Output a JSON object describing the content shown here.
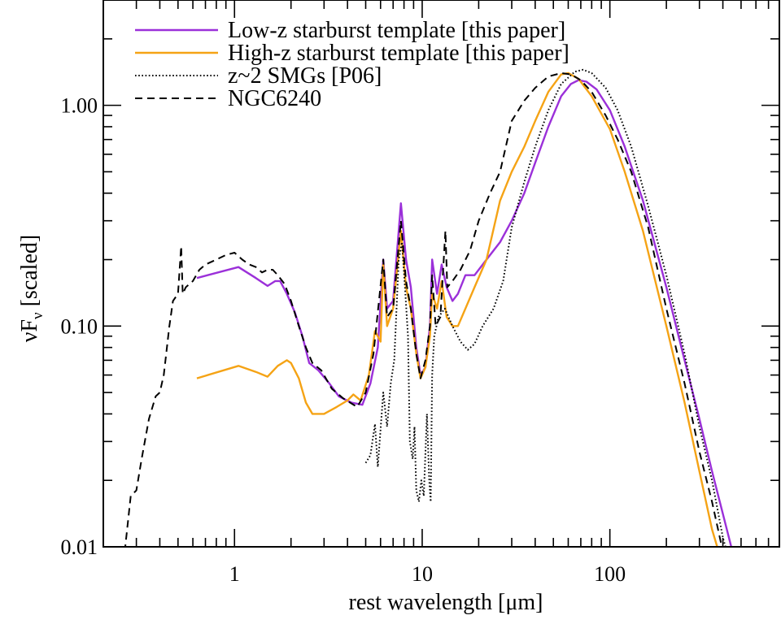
{
  "chart_data": {
    "type": "line",
    "title": "",
    "xlabel": "rest wavelength [μm]",
    "ylabel_main": "νF",
    "ylabel_sub": "ν",
    "ylabel_rest": " [scaled]",
    "x_scale": "log",
    "y_scale": "log",
    "xlim": [
      0.2,
      800
    ],
    "ylim": [
      0.01,
      3
    ],
    "grid": false,
    "legend_position": "top-left",
    "x_ticks": [
      {
        "value": 1,
        "label": "1"
      },
      {
        "value": 10,
        "label": "10"
      },
      {
        "value": 100,
        "label": "100"
      }
    ],
    "y_ticks": [
      {
        "value": 0.01,
        "label": "0.01"
      },
      {
        "value": 0.1,
        "label": "0.10"
      },
      {
        "value": 1,
        "label": "1.00"
      }
    ],
    "series": [
      {
        "name": "Low-z starburst template [this paper]",
        "color": "#9b30d9",
        "dash": "solid",
        "points": [
          [
            0.63,
            0.165
          ],
          [
            1.05,
            0.185
          ],
          [
            1.3,
            0.165
          ],
          [
            1.5,
            0.152
          ],
          [
            1.65,
            0.16
          ],
          [
            1.75,
            0.16
          ],
          [
            1.9,
            0.14
          ],
          [
            2.1,
            0.115
          ],
          [
            2.3,
            0.09
          ],
          [
            2.5,
            0.068
          ],
          [
            2.8,
            0.063
          ],
          [
            3.2,
            0.055
          ],
          [
            3.6,
            0.048
          ],
          [
            4.2,
            0.045
          ],
          [
            4.8,
            0.044
          ],
          [
            5.3,
            0.055
          ],
          [
            5.8,
            0.08
          ],
          [
            6.2,
            0.2
          ],
          [
            6.5,
            0.12
          ],
          [
            7.0,
            0.13
          ],
          [
            7.7,
            0.36
          ],
          [
            8.2,
            0.2
          ],
          [
            8.7,
            0.15
          ],
          [
            9.3,
            0.08
          ],
          [
            9.8,
            0.06
          ],
          [
            10.4,
            0.065
          ],
          [
            11.0,
            0.1
          ],
          [
            11.3,
            0.2
          ],
          [
            12.0,
            0.14
          ],
          [
            12.7,
            0.19
          ],
          [
            13.5,
            0.15
          ],
          [
            14.5,
            0.13
          ],
          [
            15.5,
            0.14
          ],
          [
            17,
            0.17
          ],
          [
            19,
            0.17
          ],
          [
            22,
            0.2
          ],
          [
            26,
            0.24
          ],
          [
            30,
            0.3
          ],
          [
            35,
            0.4
          ],
          [
            40,
            0.55
          ],
          [
            47,
            0.8
          ],
          [
            55,
            1.1
          ],
          [
            62,
            1.25
          ],
          [
            68,
            1.3
          ],
          [
            75,
            1.28
          ],
          [
            85,
            1.18
          ],
          [
            100,
            0.95
          ],
          [
            120,
            0.65
          ],
          [
            150,
            0.37
          ],
          [
            200,
            0.15
          ],
          [
            250,
            0.07
          ],
          [
            300,
            0.038
          ],
          [
            350,
            0.022
          ],
          [
            420,
            0.012
          ],
          [
            450,
            0.0095
          ]
        ]
      },
      {
        "name": "High-z starburst template [this paper]",
        "color": "#f5a315",
        "dash": "solid",
        "points": [
          [
            0.63,
            0.058
          ],
          [
            1.05,
            0.066
          ],
          [
            1.3,
            0.062
          ],
          [
            1.5,
            0.059
          ],
          [
            1.7,
            0.066
          ],
          [
            1.9,
            0.07
          ],
          [
            2.0,
            0.068
          ],
          [
            2.2,
            0.058
          ],
          [
            2.4,
            0.045
          ],
          [
            2.6,
            0.04
          ],
          [
            3.0,
            0.04
          ],
          [
            3.5,
            0.043
          ],
          [
            4.0,
            0.046
          ],
          [
            4.3,
            0.049
          ],
          [
            4.7,
            0.046
          ],
          [
            5.2,
            0.06
          ],
          [
            5.6,
            0.095
          ],
          [
            6.0,
            0.085
          ],
          [
            6.2,
            0.19
          ],
          [
            6.5,
            0.1
          ],
          [
            7.0,
            0.12
          ],
          [
            7.7,
            0.27
          ],
          [
            8.2,
            0.15
          ],
          [
            8.7,
            0.12
          ],
          [
            9.3,
            0.075
          ],
          [
            9.8,
            0.058
          ],
          [
            10.4,
            0.065
          ],
          [
            11.0,
            0.09
          ],
          [
            11.3,
            0.14
          ],
          [
            12.0,
            0.12
          ],
          [
            12.7,
            0.16
          ],
          [
            13.5,
            0.11
          ],
          [
            14.5,
            0.1
          ],
          [
            15.5,
            0.1
          ],
          [
            17,
            0.12
          ],
          [
            19,
            0.15
          ],
          [
            22,
            0.2
          ],
          [
            26,
            0.37
          ],
          [
            30,
            0.5
          ],
          [
            35,
            0.65
          ],
          [
            40,
            0.85
          ],
          [
            47,
            1.15
          ],
          [
            55,
            1.38
          ],
          [
            60,
            1.4
          ],
          [
            68,
            1.32
          ],
          [
            80,
            1.1
          ],
          [
            100,
            0.78
          ],
          [
            120,
            0.5
          ],
          [
            150,
            0.27
          ],
          [
            200,
            0.1
          ],
          [
            250,
            0.045
          ],
          [
            300,
            0.022
          ],
          [
            350,
            0.012
          ],
          [
            380,
            0.0095
          ]
        ]
      },
      {
        "name": "z~2 SMGs [P06]",
        "color": "#000000",
        "dash": "dotted",
        "points": [
          [
            5.0,
            0.024
          ],
          [
            5.3,
            0.026
          ],
          [
            5.6,
            0.036
          ],
          [
            5.8,
            0.023
          ],
          [
            6.2,
            0.05
          ],
          [
            6.5,
            0.035
          ],
          [
            6.8,
            0.055
          ],
          [
            7.1,
            0.07
          ],
          [
            7.5,
            0.2
          ],
          [
            7.8,
            0.24
          ],
          [
            8.1,
            0.15
          ],
          [
            8.4,
            0.09
          ],
          [
            8.6,
            0.03
          ],
          [
            8.9,
            0.025
          ],
          [
            9.1,
            0.035
          ],
          [
            9.3,
            0.018
          ],
          [
            9.6,
            0.016
          ],
          [
            9.9,
            0.02
          ],
          [
            10.2,
            0.017
          ],
          [
            10.6,
            0.04
          ],
          [
            10.9,
            0.02
          ],
          [
            11.1,
            0.016
          ],
          [
            11.3,
            0.06
          ],
          [
            11.6,
            0.09
          ],
          [
            12.2,
            0.11
          ],
          [
            13.2,
            0.12
          ],
          [
            14.5,
            0.1
          ],
          [
            16,
            0.085
          ],
          [
            17.5,
            0.078
          ],
          [
            19,
            0.083
          ],
          [
            21,
            0.1
          ],
          [
            24,
            0.12
          ],
          [
            27,
            0.16
          ],
          [
            30,
            0.28
          ],
          [
            35,
            0.45
          ],
          [
            40,
            0.65
          ],
          [
            47,
            0.95
          ],
          [
            55,
            1.25
          ],
          [
            65,
            1.42
          ],
          [
            72,
            1.45
          ],
          [
            80,
            1.4
          ],
          [
            95,
            1.2
          ],
          [
            110,
            0.95
          ],
          [
            130,
            0.65
          ],
          [
            160,
            0.35
          ],
          [
            200,
            0.17
          ],
          [
            250,
            0.075
          ],
          [
            300,
            0.035
          ],
          [
            350,
            0.02
          ],
          [
            400,
            0.011
          ],
          [
            420,
            0.0095
          ]
        ]
      },
      {
        "name": "NGC6240",
        "color": "#000000",
        "dash": "dashed",
        "points": [
          [
            0.26,
            0.0095
          ],
          [
            0.28,
            0.017
          ],
          [
            0.3,
            0.018
          ],
          [
            0.32,
            0.025
          ],
          [
            0.35,
            0.038
          ],
          [
            0.38,
            0.048
          ],
          [
            0.4,
            0.05
          ],
          [
            0.42,
            0.06
          ],
          [
            0.45,
            0.1
          ],
          [
            0.47,
            0.13
          ],
          [
            0.5,
            0.14
          ],
          [
            0.52,
            0.23
          ],
          [
            0.53,
            0.14
          ],
          [
            0.55,
            0.15
          ],
          [
            0.6,
            0.16
          ],
          [
            0.65,
            0.18
          ],
          [
            0.7,
            0.19
          ],
          [
            0.8,
            0.2
          ],
          [
            0.9,
            0.21
          ],
          [
            1.0,
            0.215
          ],
          [
            1.1,
            0.2
          ],
          [
            1.2,
            0.19
          ],
          [
            1.3,
            0.185
          ],
          [
            1.4,
            0.175
          ],
          [
            1.5,
            0.18
          ],
          [
            1.6,
            0.18
          ],
          [
            1.7,
            0.17
          ],
          [
            1.85,
            0.155
          ],
          [
            2.0,
            0.13
          ],
          [
            2.2,
            0.1
          ],
          [
            2.4,
            0.08
          ],
          [
            2.6,
            0.068
          ],
          [
            2.9,
            0.063
          ],
          [
            3.3,
            0.052
          ],
          [
            3.8,
            0.047
          ],
          [
            4.5,
            0.043
          ],
          [
            5.0,
            0.05
          ],
          [
            5.5,
            0.075
          ],
          [
            6.2,
            0.2
          ],
          [
            6.5,
            0.11
          ],
          [
            7.0,
            0.12
          ],
          [
            7.7,
            0.3
          ],
          [
            8.2,
            0.16
          ],
          [
            8.7,
            0.12
          ],
          [
            9.3,
            0.075
          ],
          [
            9.8,
            0.058
          ],
          [
            10.4,
            0.07
          ],
          [
            11.0,
            0.1
          ],
          [
            11.3,
            0.17
          ],
          [
            11.8,
            0.1
          ],
          [
            12.5,
            0.11
          ],
          [
            13.3,
            0.27
          ],
          [
            13.6,
            0.15
          ],
          [
            14.5,
            0.16
          ],
          [
            16,
            0.18
          ],
          [
            18,
            0.22
          ],
          [
            20,
            0.3
          ],
          [
            23,
            0.4
          ],
          [
            26,
            0.5
          ],
          [
            30,
            0.85
          ],
          [
            35,
            1.05
          ],
          [
            40,
            1.2
          ],
          [
            47,
            1.35
          ],
          [
            55,
            1.4
          ],
          [
            62,
            1.38
          ],
          [
            70,
            1.3
          ],
          [
            80,
            1.15
          ],
          [
            95,
            0.9
          ],
          [
            110,
            0.7
          ],
          [
            130,
            0.5
          ],
          [
            160,
            0.28
          ],
          [
            200,
            0.12
          ],
          [
            250,
            0.055
          ],
          [
            300,
            0.027
          ],
          [
            350,
            0.016
          ],
          [
            400,
            0.0095
          ]
        ]
      }
    ]
  }
}
